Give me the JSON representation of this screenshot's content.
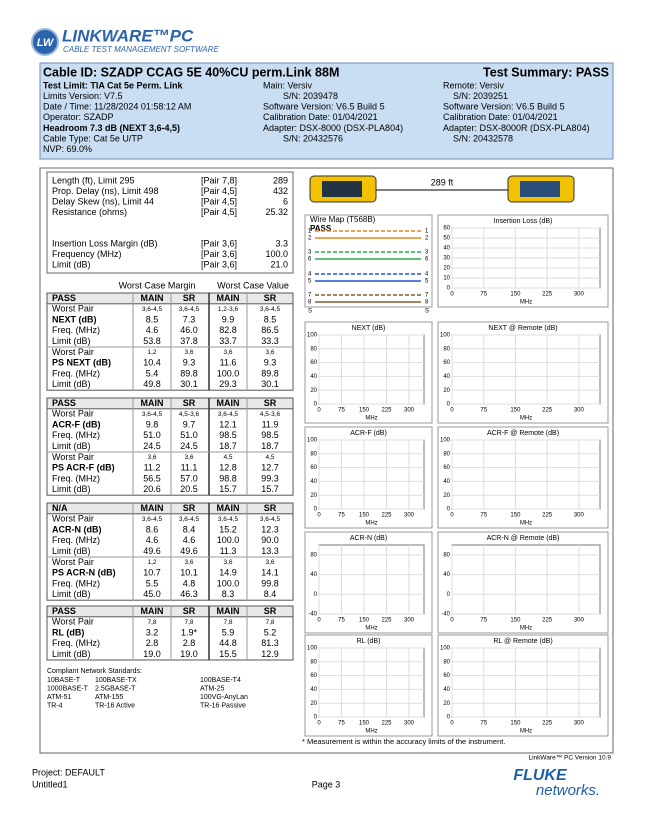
{
  "header": {
    "badge": "LW",
    "title": "LINKWARE™PC",
    "subtitle": "CABLE TEST MANAGEMENT SOFTWARE"
  },
  "summary": {
    "cable_id": "Cable ID: SZADP CCAG 5E 40%CU perm.Link 88M",
    "test_summary": "Test Summary: PASS",
    "left": [
      "Test Limit: TIA Cat 5e Perm. Link",
      "Limits Version: V7.5",
      "Date / Time: 11/28/2024  01:58:12 AM",
      "Operator: SZADP",
      "Headroom 7.3 dB (NEXT 3,6-4,5)",
      "Cable Type: Cat 5e U/TP",
      "NVP: 69.0%"
    ],
    "main": [
      "Main: Versiv",
      "S/N: 2039478",
      "Software Version: V6.5 Build 5",
      "Calibration Date: 01/04/2021",
      "Adapter: DSX-8000 (DSX-PLA804)",
      "S/N: 20432576"
    ],
    "remote": [
      "Remote: Versiv",
      "S/N: 2039251",
      "Software Version: V6.5 Build 5",
      "Calibration Date: 01/04/2021",
      "Adapter: DSX-8000R (DSX-PLA804)",
      "S/N: 20432578"
    ]
  },
  "properties": [
    [
      "Length (ft), Limit 295",
      "[Pair 7,8]",
      "289"
    ],
    [
      "Prop. Delay (ns), Limit 498",
      "[Pair 4,5]",
      "432"
    ],
    [
      "Delay Skew (ns), Limit 44",
      "[Pair 4,5]",
      "6"
    ],
    [
      "Resistance (ohms)",
      "[Pair 4,5]",
      "25.32"
    ],
    [
      "Insertion Loss Margin (dB)",
      "[Pair 3,6]",
      "3.3"
    ],
    [
      "Frequency (MHz)",
      "[Pair 3,6]",
      "100.0"
    ],
    [
      "Limit (dB)",
      "[Pair 3,6]",
      "21.0"
    ]
  ],
  "section_headers": [
    "Worst Case Margin",
    "Worst Case Value"
  ],
  "sections": [
    {
      "header": [
        "PASS",
        "MAIN",
        "SR",
        "MAIN",
        "SR"
      ],
      "rows": [
        [
          "Worst Pair",
          "3,6-4,5",
          "3,6-4,5",
          "1,2-3,6",
          "3,6-4,5"
        ],
        [
          "NEXT (dB)",
          "8.5",
          "7.3",
          "9.9",
          "8.5"
        ],
        [
          "Freq. (MHz)",
          "4.6",
          "46.0",
          "82.8",
          "86.5"
        ],
        [
          "Limit (dB)",
          "53.8",
          "37.8",
          "33.7",
          "33.3"
        ],
        [
          "Worst Pair",
          "1,2",
          "3,6",
          "3,6",
          "3,6"
        ],
        [
          "PS NEXT (dB)",
          "10.4",
          "9.3",
          "11.6",
          "9.3"
        ],
        [
          "Freq. (MHz)",
          "5.4",
          "89.8",
          "100.0",
          "89.8"
        ],
        [
          "Limit (dB)",
          "49.8",
          "30.1",
          "29.3",
          "30.1"
        ]
      ]
    },
    {
      "header": [
        "PASS",
        "MAIN",
        "SR",
        "MAIN",
        "SR"
      ],
      "rows": [
        [
          "Worst Pair",
          "3,6-4,5",
          "4,5-3,6",
          "3,6-4,5",
          "4,5-3,6"
        ],
        [
          "ACR-F (dB)",
          "9.8",
          "9.7",
          "12.1",
          "11.9"
        ],
        [
          "Freq. (MHz)",
          "51.0",
          "51.0",
          "98.5",
          "98.5"
        ],
        [
          "Limit (dB)",
          "24.5",
          "24.5",
          "18.7",
          "18.7"
        ],
        [
          "Worst Pair",
          "3,6",
          "3,6",
          "4,5",
          "4,5"
        ],
        [
          "PS ACR-F (dB)",
          "11.2",
          "11.1",
          "12.8",
          "12.7"
        ],
        [
          "Freq. (MHz)",
          "56.5",
          "57.0",
          "98.8",
          "99.3"
        ],
        [
          "Limit (dB)",
          "20.6",
          "20.5",
          "15.7",
          "15.7"
        ]
      ]
    },
    {
      "header": [
        "N/A",
        "MAIN",
        "SR",
        "MAIN",
        "SR"
      ],
      "rows": [
        [
          "Worst Pair",
          "3,6-4,5",
          "3,6-4,5",
          "3,6-4,5",
          "3,6-4,5"
        ],
        [
          "ACR-N (dB)",
          "8.6",
          "8.4",
          "15.2",
          "12.3"
        ],
        [
          "Freq. (MHz)",
          "4.6",
          "4.6",
          "100.0",
          "90.0"
        ],
        [
          "Limit (dB)",
          "49.6",
          "49.6",
          "11.3",
          "13.3"
        ],
        [
          "Worst Pair",
          "1,2",
          "3,6",
          "3,6",
          "3,6"
        ],
        [
          "PS ACR-N (dB)",
          "10.7",
          "10.1",
          "14.9",
          "14.1"
        ],
        [
          "Freq. (MHz)",
          "5.5",
          "4.8",
          "100.0",
          "99.8"
        ],
        [
          "Limit (dB)",
          "45.0",
          "46.3",
          "8.3",
          "8.4"
        ]
      ]
    },
    {
      "header": [
        "PASS",
        "MAIN",
        "SR",
        "MAIN",
        "SR"
      ],
      "rows": [
        [
          "Worst Pair",
          "7,8",
          "7,8",
          "7,8",
          "7,8"
        ],
        [
          "RL (dB)",
          "3.2",
          "1.9*",
          "5.9",
          "5.2"
        ],
        [
          "Freq. (MHz)",
          "2.8",
          "2.8",
          "44.8",
          "81.3"
        ],
        [
          "Limit (dB)",
          "19.0",
          "19.0",
          "15.5",
          "12.9"
        ]
      ]
    }
  ],
  "standards": {
    "title": "Compliant Network Standards:",
    "items": [
      "10BASE-T",
      "100BASE-TX",
      "100BASE-T4",
      "1000BASE-T",
      "2.5GBASE-T",
      "ATM-25",
      "ATM-51",
      "ATM-155",
      "100VG-AnyLan",
      "TR-4",
      "TR-16 Active",
      "TR-16 Passive"
    ]
  },
  "length_label": "289 ft",
  "wire_map": {
    "title": "Wire Map (T568B)",
    "status": "PASS",
    "pins": [
      "1",
      "2",
      "3",
      "6",
      "4",
      "5",
      "7",
      "8"
    ],
    "shield": "S"
  },
  "charts": [
    {
      "title": "Insertion Loss (dB)",
      "xlabel": "MHz",
      "xlim": [
        0,
        350
      ],
      "xticks": [
        0,
        75,
        150,
        225,
        300
      ],
      "ylim": [
        0,
        60
      ],
      "yticks": [
        0,
        10,
        20,
        30,
        40,
        50,
        60
      ]
    },
    {
      "title": "NEXT (dB)",
      "xlabel": "MHz",
      "xlim": [
        0,
        350
      ],
      "xticks": [
        0,
        75,
        150,
        225,
        300
      ],
      "ylim": [
        0,
        100
      ],
      "yticks": [
        0,
        20,
        40,
        60,
        80,
        100
      ]
    },
    {
      "title": "NEXT @ Remote (dB)",
      "xlabel": "MHz",
      "xlim": [
        0,
        350
      ],
      "xticks": [
        0,
        75,
        150,
        225,
        300
      ],
      "ylim": [
        0,
        100
      ],
      "yticks": [
        0,
        20,
        40,
        60,
        80,
        100
      ]
    },
    {
      "title": "ACR-F (dB)",
      "xlabel": "MHz",
      "xlim": [
        0,
        350
      ],
      "xticks": [
        0,
        75,
        150,
        225,
        300
      ],
      "ylim": [
        0,
        100
      ],
      "yticks": [
        0,
        20,
        40,
        60,
        80,
        100
      ]
    },
    {
      "title": "ACR-F @ Remote (dB)",
      "xlabel": "MHz",
      "xlim": [
        0,
        350
      ],
      "xticks": [
        0,
        75,
        150,
        225,
        300
      ],
      "ylim": [
        0,
        100
      ],
      "yticks": [
        0,
        20,
        40,
        60,
        80,
        100
      ]
    },
    {
      "title": "ACR-N (dB)",
      "xlabel": "MHz",
      "xlim": [
        0,
        350
      ],
      "xticks": [
        0,
        75,
        150,
        225,
        300
      ],
      "ylim": [
        -40,
        100
      ],
      "yticks": [
        -40,
        0,
        40,
        80
      ]
    },
    {
      "title": "ACR-N @ Remote (dB)",
      "xlabel": "MHz",
      "xlim": [
        0,
        350
      ],
      "xticks": [
        0,
        75,
        150,
        225,
        300
      ],
      "ylim": [
        -40,
        100
      ],
      "yticks": [
        -40,
        0,
        40,
        80
      ]
    },
    {
      "title": "RL (dB)",
      "xlabel": "MHz",
      "xlim": [
        0,
        350
      ],
      "xticks": [
        0,
        75,
        150,
        225,
        300
      ],
      "ylim": [
        0,
        100
      ],
      "yticks": [
        0,
        20,
        40,
        60,
        80,
        100
      ]
    },
    {
      "title": "RL @ Remote (dB)",
      "xlabel": "MHz",
      "xlim": [
        0,
        350
      ],
      "xticks": [
        0,
        75,
        150,
        225,
        300
      ],
      "ylim": [
        0,
        100
      ],
      "yticks": [
        0,
        20,
        40,
        60,
        80,
        100
      ]
    }
  ],
  "footnote": "* Measurement is within the accuracy limits of the instrument.",
  "version": "LinkWare™ PC Version 10.9",
  "footer": {
    "project": "Project: DEFAULT",
    "file": "Untitled1",
    "page": "Page 3",
    "brand": "FLUKE",
    "brand_sub": "networks."
  }
}
